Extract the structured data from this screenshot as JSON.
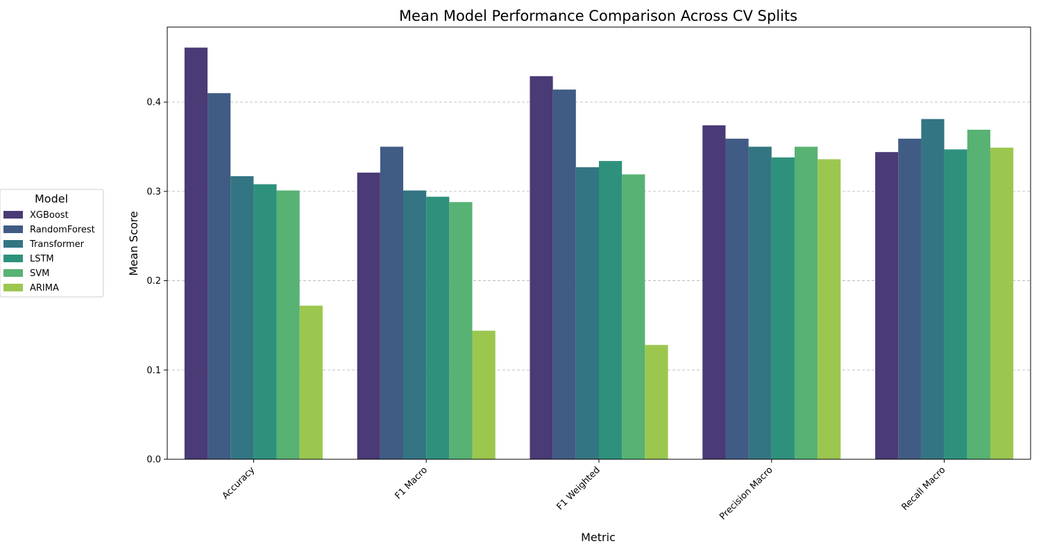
{
  "chart_data": {
    "type": "bar",
    "title": "Mean Model Performance Comparison Across CV Splits",
    "xlabel": "Metric",
    "ylabel": "Mean Score",
    "ylim": [
      0,
      0.484
    ],
    "yticks": [
      "0.0",
      "0.1",
      "0.2",
      "0.3",
      "0.4"
    ],
    "grid": "horizontal dashed",
    "legend": {
      "title": "Model",
      "placement": "outside-left"
    },
    "categories": [
      "Accuracy",
      "F1 Macro",
      "F1 Weighted",
      "Precision Macro",
      "Recall Macro"
    ],
    "series": [
      {
        "name": "XGBoost",
        "color": "#4a3a75",
        "values": [
          0.461,
          0.321,
          0.429,
          0.374,
          0.344
        ]
      },
      {
        "name": "RandomForest",
        "color": "#405c84",
        "values": [
          0.41,
          0.35,
          0.414,
          0.359,
          0.359
        ]
      },
      {
        "name": "Transformer",
        "color": "#337582",
        "values": [
          0.317,
          0.301,
          0.327,
          0.35,
          0.381
        ]
      },
      {
        "name": "LSTM",
        "color": "#2e917c",
        "values": [
          0.308,
          0.294,
          0.334,
          0.338,
          0.347
        ]
      },
      {
        "name": "SVM",
        "color": "#58b273",
        "values": [
          0.301,
          0.288,
          0.319,
          0.35,
          0.369
        ]
      },
      {
        "name": "ARIMA",
        "color": "#9bc74f",
        "values": [
          0.172,
          0.144,
          0.128,
          0.336,
          0.349
        ]
      }
    ]
  }
}
